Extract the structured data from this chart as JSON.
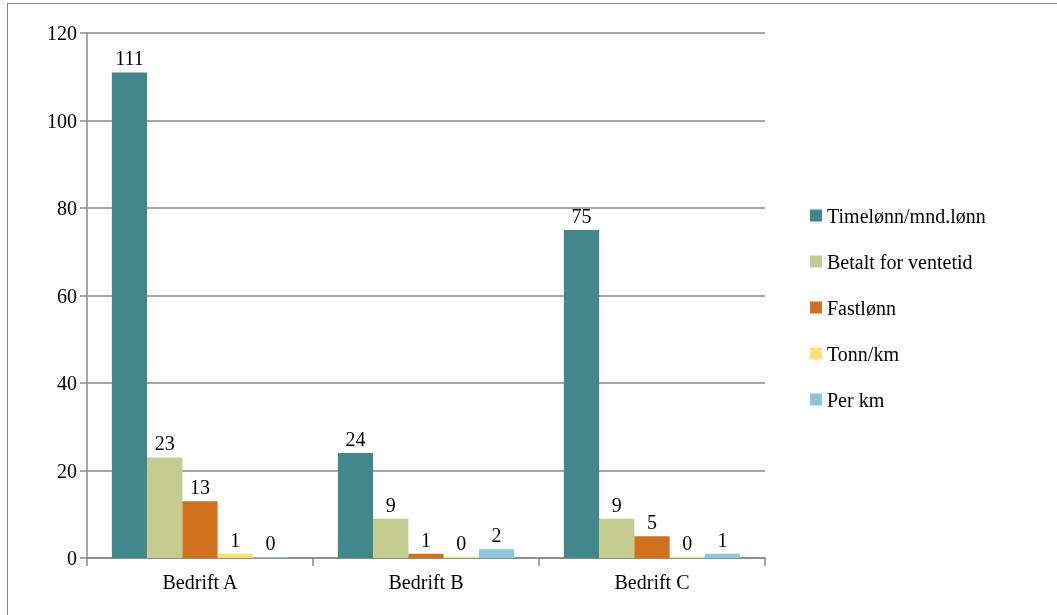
{
  "chart_data": {
    "type": "bar",
    "categories": [
      "Bedrift A",
      "Bedrift B",
      "Bedrift C"
    ],
    "series": [
      {
        "name": "Timelønn/mnd.lønn",
        "color": "#41878b",
        "values": [
          111,
          24,
          75
        ]
      },
      {
        "name": "Betalt for ventetid",
        "color": "#c4cd8f",
        "values": [
          23,
          9,
          9
        ]
      },
      {
        "name": "Fastlønn",
        "color": "#d2711d",
        "values": [
          13,
          1,
          5
        ]
      },
      {
        "name": "Tonn/km",
        "color": "#ffdf72",
        "values": [
          1,
          0,
          0
        ]
      },
      {
        "name": "Per km",
        "color": "#8bc8db",
        "values": [
          0,
          2,
          1
        ]
      }
    ],
    "ylim": [
      0,
      120
    ],
    "yticks": [
      0,
      20,
      40,
      60,
      80,
      100,
      120
    ],
    "grid": "y",
    "legend": "right",
    "data_labels": true
  }
}
